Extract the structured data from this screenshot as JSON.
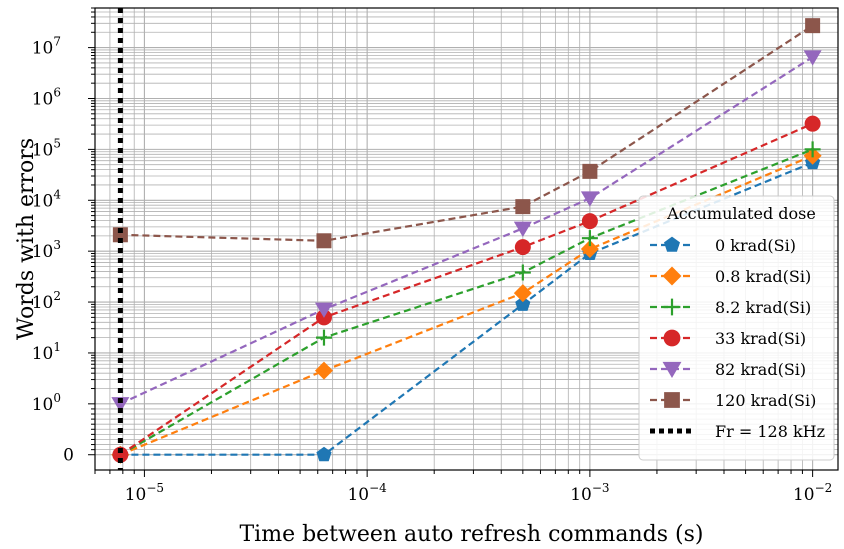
{
  "chart_data": {
    "type": "line",
    "title": "",
    "xlabel": "Time between auto refresh commands (s)",
    "ylabel": "Words with errors",
    "xscale": "log",
    "yscale": "symlog",
    "xlim": [
      6e-06,
      0.013
    ],
    "ylim": [
      -0.3,
      60000000.0
    ],
    "grid": true,
    "x": [
      7.8e-06,
      6.4e-05,
      0.0005,
      0.001,
      0.01
    ],
    "x_tick_labels": [
      {
        "value": 1e-05,
        "base": "10",
        "exp": "−5"
      },
      {
        "value": 0.0001,
        "base": "10",
        "exp": "−4"
      },
      {
        "value": 0.001,
        "base": "10",
        "exp": "−3"
      },
      {
        "value": 0.01,
        "base": "10",
        "exp": "−2"
      }
    ],
    "y_tick_labels": [
      {
        "value": 0,
        "base": "0",
        "exp": ""
      },
      {
        "value": 1,
        "base": "10",
        "exp": "0"
      },
      {
        "value": 10,
        "base": "10",
        "exp": "1"
      },
      {
        "value": 100,
        "base": "10",
        "exp": "2"
      },
      {
        "value": 1000,
        "base": "10",
        "exp": "3"
      },
      {
        "value": 10000,
        "base": "10",
        "exp": "4"
      },
      {
        "value": 100000,
        "base": "10",
        "exp": "5"
      },
      {
        "value": 1000000,
        "base": "10",
        "exp": "6"
      },
      {
        "value": 10000000,
        "base": "10",
        "exp": "7"
      }
    ],
    "legend": {
      "title": "Accumulated dose",
      "position": "lower right"
    },
    "series": [
      {
        "name": "0 krad(Si)",
        "color": "#1f77b4",
        "marker": "pentagon",
        "values": [
          0,
          0,
          90,
          900,
          55000
        ]
      },
      {
        "name": "0.8 krad(Si)",
        "color": "#ff7f0e",
        "marker": "diamond",
        "values": [
          0,
          4.5,
          150,
          1100,
          75000
        ]
      },
      {
        "name": "8.2 krad(Si)",
        "color": "#2ca02c",
        "marker": "plus",
        "values": [
          0,
          20,
          380,
          1800,
          100000
        ]
      },
      {
        "name": "33 krad(Si)",
        "color": "#d62728",
        "marker": "circle",
        "values": [
          0,
          50,
          1200,
          3900,
          320000
        ]
      },
      {
        "name": "82 krad(Si)",
        "color": "#9467bd",
        "marker": "triangle-down",
        "values": [
          1,
          72,
          2800,
          11000,
          6500000
        ]
      },
      {
        "name": "120 krad(Si)",
        "color": "#8c564b",
        "marker": "square",
        "values": [
          2100,
          1600,
          7500,
          37000,
          27000000
        ]
      }
    ],
    "vline": {
      "name": "Fr = 128 kHz",
      "x": 7.8e-06,
      "color": "#000000",
      "style": "dotted"
    }
  }
}
